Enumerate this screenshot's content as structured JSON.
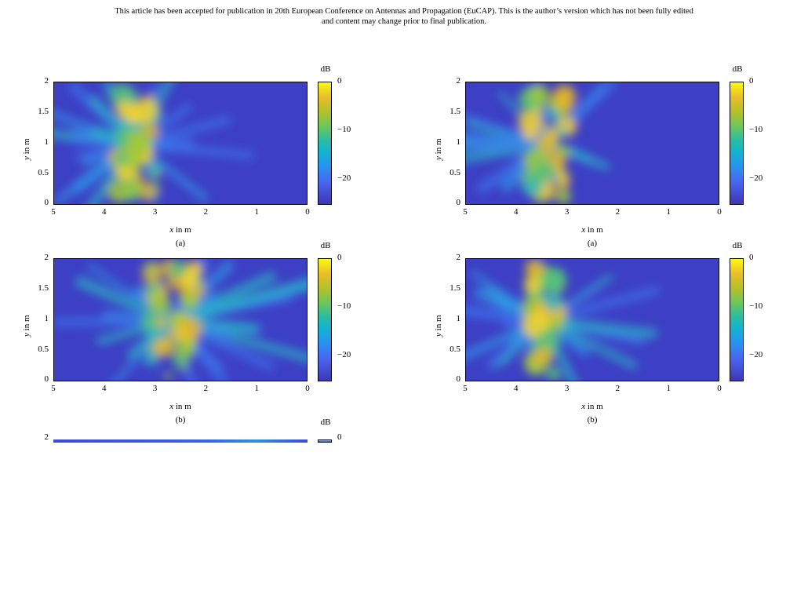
{
  "header": {
    "line1": "This article has been accepted for publication in 20th European Conference on Antennas and Propagation (EuCAP). This is the author’s version which has not been fully edited",
    "line2": "and content may change prior to final publication."
  },
  "common": {
    "colorbar_title": "dB",
    "colorbar_ticks": [
      "0",
      "−10",
      "−20"
    ],
    "x_ticks": [
      "5",
      "4",
      "3",
      "2",
      "1",
      "0"
    ],
    "y_ticks": [
      "2",
      "1.5",
      "1",
      "0.5",
      "0"
    ],
    "x_label_var": "x",
    "x_label_unit": " in m",
    "y_label_var": "y",
    "y_label_unit": " in m"
  },
  "panels": [
    {
      "caption": "(a)"
    },
    {
      "caption": "(a)"
    },
    {
      "caption": "(b)"
    },
    {
      "caption": "(b)"
    }
  ],
  "partial_panel": {
    "y_tick_top": "2",
    "colorbar_title": "dB",
    "colorbar_tick_top": "0"
  },
  "chart_data": [
    {
      "type": "heatmap",
      "xlabel": "x in m",
      "ylabel": "y in m",
      "xlim": [
        5,
        0
      ],
      "ylim": [
        0,
        2
      ],
      "colorbar": {
        "label": "dB",
        "range": [
          -25,
          0
        ],
        "ticks": [
          0,
          -10,
          -20
        ]
      }
    },
    {
      "type": "heatmap",
      "xlabel": "x in m",
      "ylabel": "y in m",
      "xlim": [
        5,
        0
      ],
      "ylim": [
        0,
        2
      ],
      "colorbar": {
        "label": "dB",
        "range": [
          -25,
          0
        ],
        "ticks": [
          0,
          -10,
          -20
        ]
      }
    },
    {
      "type": "heatmap",
      "xlabel": "x in m",
      "ylabel": "y in m",
      "xlim": [
        5,
        0
      ],
      "ylim": [
        0,
        2
      ],
      "colorbar": {
        "label": "dB",
        "range": [
          -25,
          0
        ],
        "ticks": [
          0,
          -10,
          -20
        ]
      }
    },
    {
      "type": "heatmap",
      "xlabel": "x in m",
      "ylabel": "y in m",
      "xlim": [
        5,
        0
      ],
      "ylim": [
        0,
        2
      ],
      "colorbar": {
        "label": "dB",
        "range": [
          -25,
          0
        ],
        "ticks": [
          0,
          -10,
          -20
        ]
      }
    }
  ]
}
